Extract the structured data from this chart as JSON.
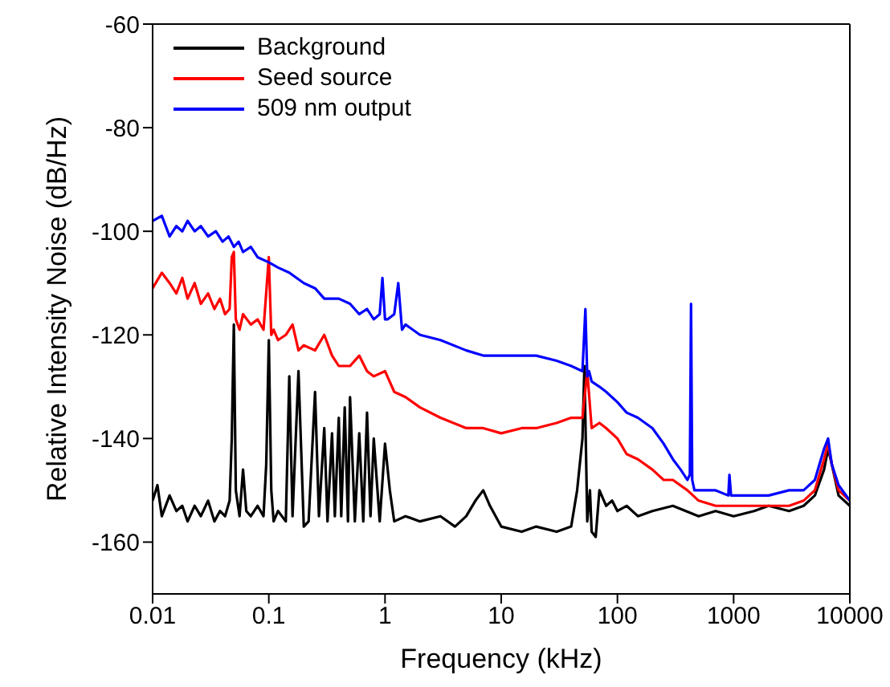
{
  "chart_data": {
    "type": "line",
    "xlabel": "Frequency (kHz)",
    "ylabel": "Relative Intensity Noise (dB/Hz)",
    "log": "x",
    "xlim": [
      0.01,
      10000
    ],
    "xticks": [
      0.01,
      0.1,
      1,
      10,
      100,
      1000,
      10000
    ],
    "ylim": [
      -170,
      -60
    ],
    "yticks": [
      -160,
      -140,
      -120,
      -100,
      -80,
      -60
    ],
    "legend": "top left",
    "marker": "none",
    "line_style": "solid",
    "series": [
      {
        "name": "Background",
        "color": "#000000",
        "x": [
          0.01,
          0.011,
          0.012,
          0.014,
          0.016,
          0.018,
          0.02,
          0.023,
          0.026,
          0.03,
          0.034,
          0.038,
          0.042,
          0.046,
          0.048,
          0.05,
          0.052,
          0.056,
          0.06,
          0.064,
          0.07,
          0.08,
          0.09,
          0.095,
          0.1,
          0.105,
          0.11,
          0.12,
          0.14,
          0.15,
          0.16,
          0.18,
          0.2,
          0.22,
          0.25,
          0.27,
          0.3,
          0.32,
          0.35,
          0.37,
          0.4,
          0.42,
          0.45,
          0.48,
          0.5,
          0.55,
          0.6,
          0.65,
          0.7,
          0.75,
          0.8,
          0.9,
          1,
          1.1,
          1.2,
          1.5,
          2,
          3,
          4,
          5,
          6,
          7,
          8,
          10,
          15,
          20,
          30,
          40,
          45,
          50,
          52,
          55,
          58,
          60,
          65,
          70,
          80,
          90,
          100,
          120,
          150,
          200,
          300,
          500,
          700,
          1000,
          1500,
          2000,
          3000,
          4000,
          5000,
          6000,
          6500,
          7000,
          8000,
          10000
        ],
        "values": [
          -152,
          -149,
          -155,
          -151,
          -154,
          -153,
          -156,
          -153,
          -155,
          -152,
          -156,
          -154,
          -155,
          -152,
          -140,
          -118,
          -150,
          -155,
          -146,
          -154,
          -155,
          -153,
          -155,
          -145,
          -121,
          -150,
          -156,
          -154,
          -156,
          -128,
          -155,
          -127,
          -157,
          -156,
          -131,
          -155,
          -138,
          -156,
          -139,
          -155,
          -136,
          -155,
          -134,
          -156,
          -132,
          -156,
          -139,
          -156,
          -135,
          -155,
          -140,
          -156,
          -141,
          -150,
          -156,
          -155,
          -156,
          -155,
          -157,
          -155,
          -152,
          -150,
          -153,
          -157,
          -158,
          -157,
          -158,
          -157,
          -150,
          -140,
          -126,
          -156,
          -150,
          -158,
          -159,
          -150,
          -153,
          -152,
          -154,
          -153,
          -155,
          -154,
          -153,
          -155,
          -154,
          -155,
          -154,
          -153,
          -154,
          -153,
          -151,
          -146,
          -142,
          -145,
          -151,
          -153
        ]
      },
      {
        "name": "Seed source",
        "color": "#ff0000",
        "x": [
          0.01,
          0.012,
          0.014,
          0.016,
          0.018,
          0.02,
          0.023,
          0.026,
          0.03,
          0.034,
          0.038,
          0.042,
          0.046,
          0.048,
          0.05,
          0.052,
          0.056,
          0.06,
          0.07,
          0.08,
          0.09,
          0.1,
          0.105,
          0.11,
          0.12,
          0.14,
          0.16,
          0.18,
          0.2,
          0.25,
          0.3,
          0.35,
          0.4,
          0.5,
          0.6,
          0.7,
          0.8,
          1,
          1.2,
          1.5,
          2,
          3,
          5,
          7,
          10,
          15,
          20,
          30,
          40,
          50,
          55,
          60,
          70,
          80,
          100,
          120,
          150,
          200,
          250,
          300,
          400,
          500,
          700,
          1000,
          1500,
          2000,
          3000,
          4000,
          5000,
          6000,
          6500,
          7000,
          8000,
          10000
        ],
        "values": [
          -111,
          -108,
          -110,
          -112,
          -109,
          -113,
          -110,
          -114,
          -112,
          -115,
          -113,
          -116,
          -115,
          -105,
          -104,
          -117,
          -119,
          -116,
          -118,
          -117,
          -119,
          -105,
          -120,
          -119,
          -121,
          -120,
          -118,
          -123,
          -122,
          -123,
          -120,
          -124,
          -126,
          -126,
          -124,
          -127,
          -128,
          -127,
          -131,
          -132,
          -134,
          -136,
          -138,
          -138,
          -139,
          -138,
          -138,
          -137,
          -136,
          -136,
          -127,
          -138,
          -137,
          -138,
          -140,
          -143,
          -144,
          -146,
          -148,
          -148,
          -150,
          -152,
          -153,
          -153,
          -153,
          -153,
          -153,
          -152,
          -150,
          -144,
          -141,
          -145,
          -150,
          -152
        ]
      },
      {
        "name": "509 nm output",
        "color": "#0000ff",
        "x": [
          0.01,
          0.012,
          0.014,
          0.016,
          0.018,
          0.02,
          0.023,
          0.026,
          0.03,
          0.035,
          0.04,
          0.045,
          0.05,
          0.055,
          0.06,
          0.07,
          0.08,
          0.1,
          0.12,
          0.15,
          0.2,
          0.25,
          0.3,
          0.4,
          0.5,
          0.6,
          0.7,
          0.8,
          0.9,
          0.95,
          1,
          1.05,
          1.2,
          1.3,
          1.4,
          1.5,
          2,
          3,
          5,
          7,
          10,
          15,
          20,
          30,
          40,
          50,
          53,
          55,
          57,
          60,
          70,
          80,
          100,
          120,
          150,
          200,
          250,
          300,
          350,
          400,
          420,
          430,
          440,
          460,
          500,
          700,
          900,
          920,
          950,
          1000,
          1500,
          2000,
          3000,
          4000,
          5000,
          6000,
          6500,
          7000,
          8000,
          10000
        ],
        "values": [
          -98,
          -97,
          -101,
          -99,
          -100,
          -98,
          -100,
          -99,
          -101,
          -100,
          -102,
          -101,
          -103,
          -102,
          -104,
          -103,
          -105,
          -106,
          -107,
          -108,
          -110,
          -111,
          -113,
          -113,
          -114,
          -116,
          -115,
          -117,
          -116,
          -109,
          -117,
          -117,
          -116,
          -110,
          -119,
          -118,
          -120,
          -121,
          -123,
          -124,
          -124,
          -124,
          -124,
          -125,
          -126,
          -127,
          -115,
          -128,
          -127,
          -129,
          -130,
          -131,
          -133,
          -135,
          -136,
          -138,
          -141,
          -144,
          -146,
          -148,
          -147,
          -114,
          -148,
          -150,
          -150,
          -150,
          -151,
          -147,
          -151,
          -151,
          -151,
          -151,
          -150,
          -150,
          -148,
          -142,
          -140,
          -145,
          -149,
          -152
        ]
      }
    ]
  }
}
